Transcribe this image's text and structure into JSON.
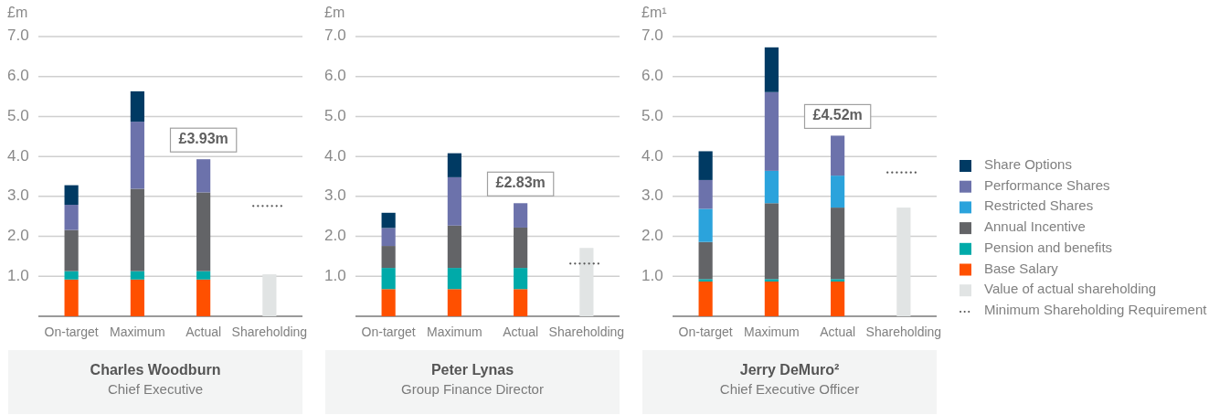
{
  "chart_data": [
    {
      "type": "bar",
      "stacked": true,
      "title": "Charles Woodburn",
      "subtitle": "Chief Executive",
      "ylabel": "£m",
      "categories": [
        "On-target",
        "Maximum",
        "Actual",
        "Shareholding"
      ],
      "ylim": [
        0,
        7
      ],
      "yticks": [
        {
          "value": 0,
          "label": null
        },
        {
          "value": 1,
          "label": "1.0"
        },
        {
          "value": 2,
          "label": "2.0"
        },
        {
          "value": 3,
          "label": "3.0"
        },
        {
          "value": 4,
          "label": "4.0"
        },
        {
          "value": 5,
          "label": "5.0"
        },
        {
          "value": 6,
          "label": "6.0"
        },
        {
          "value": 7,
          "label": "7.0"
        }
      ],
      "grid": "y",
      "totals": [
        null,
        null,
        "£3.93m",
        null
      ],
      "series": [
        {
          "color": "#e1e4e4",
          "values": [
            null,
            null,
            null,
            1.05
          ]
        },
        {
          "color": "#ff5000",
          "values": [
            0.92,
            0.92,
            0.92,
            null
          ]
        },
        {
          "color": "#00aaa9",
          "values": [
            0.21,
            0.21,
            0.21,
            null
          ]
        },
        {
          "color": "#636467",
          "values": [
            1.03,
            2.06,
            1.97,
            null
          ]
        },
        {
          "color": "#6c72ab",
          "values": [
            0.63,
            1.68,
            0.83,
            null
          ]
        },
        {
          "color": "#003a63",
          "values": [
            0.49,
            0.76,
            null,
            null
          ]
        }
      ],
      "ref_lines": [
        {
          "axis": "y",
          "value": 2.76,
          "color": "#555555",
          "line_style": "dotted"
        }
      ]
    },
    {
      "type": "bar",
      "stacked": true,
      "title": "Peter Lynas",
      "subtitle": "Group Finance Director",
      "ylabel": "£m",
      "categories": [
        "On-target",
        "Maximum",
        "Actual",
        "Shareholding"
      ],
      "ylim": [
        0,
        7
      ],
      "yticks": [
        {
          "value": 0,
          "label": null
        },
        {
          "value": 1,
          "label": "1.0"
        },
        {
          "value": 2,
          "label": "2.0"
        },
        {
          "value": 3,
          "label": "3.0"
        },
        {
          "value": 4,
          "label": "4.0"
        },
        {
          "value": 5,
          "label": "5.0"
        },
        {
          "value": 6,
          "label": "6.0"
        },
        {
          "value": 7,
          "label": "7.0"
        }
      ],
      "grid": "y",
      "totals": [
        null,
        null,
        "£2.83m",
        null
      ],
      "series": [
        {
          "color": "#e1e4e4",
          "values": [
            null,
            null,
            null,
            1.71
          ]
        },
        {
          "color": "#ff5000",
          "values": [
            0.68,
            0.68,
            0.68,
            null
          ]
        },
        {
          "color": "#00aaa9",
          "values": [
            0.53,
            0.53,
            0.53,
            null
          ]
        },
        {
          "color": "#636467",
          "values": [
            0.55,
            1.06,
            1.01,
            null
          ]
        },
        {
          "color": "#6c72ab",
          "values": [
            0.45,
            1.21,
            0.61,
            null
          ]
        },
        {
          "color": "#003a63",
          "values": [
            0.38,
            0.6,
            null,
            null
          ]
        }
      ],
      "ref_lines": [
        {
          "axis": "y",
          "value": 1.32,
          "color": "#555555",
          "line_style": "dotted"
        }
      ]
    },
    {
      "type": "bar",
      "stacked": true,
      "title": "Jerry DeMuro²",
      "subtitle": "Chief Executive Officer",
      "ylabel": "£m¹",
      "categories": [
        "On-target",
        "Maximum",
        "Actual",
        "Shareholding"
      ],
      "ylim": [
        0,
        7
      ],
      "yticks": [
        {
          "value": 0,
          "label": null
        },
        {
          "value": 1,
          "label": "1.0"
        },
        {
          "value": 2,
          "label": "2.0"
        },
        {
          "value": 3,
          "label": "3.0"
        },
        {
          "value": 4,
          "label": "4.0"
        },
        {
          "value": 5,
          "label": "5.0"
        },
        {
          "value": 6,
          "label": "6.0"
        },
        {
          "value": 7,
          "label": "7.0"
        }
      ],
      "grid": "y",
      "totals": [
        null,
        null,
        "£4.52m",
        null
      ],
      "legend": "right",
      "series": [
        {
          "name": "Value of actual shareholding",
          "color": "#e1e4e4",
          "values": [
            null,
            null,
            null,
            2.72
          ]
        },
        {
          "name": "Base Salary",
          "color": "#ff5000",
          "values": [
            0.87,
            0.87,
            0.87,
            null
          ]
        },
        {
          "name": "Pension and benefits",
          "color": "#00aaa9",
          "values": [
            0.06,
            0.06,
            0.06,
            null
          ]
        },
        {
          "name": "Annual Incentive",
          "color": "#636467",
          "values": [
            0.93,
            1.9,
            1.79,
            null
          ]
        },
        {
          "name": "Restricted Shares",
          "color": "#2ba3dc",
          "values": [
            0.83,
            0.81,
            0.8,
            null
          ]
        },
        {
          "name": "Performance Shares",
          "color": "#6c72ab",
          "values": [
            0.72,
            1.97,
            1.0,
            null
          ]
        },
        {
          "name": "Share Options",
          "color": "#003a63",
          "values": [
            0.72,
            1.12,
            null,
            null
          ]
        }
      ],
      "ref_lines": [
        {
          "axis": "y",
          "value": 3.6,
          "label": "Minimum Shareholding Requirement",
          "color": "#555555",
          "line_style": "dotted"
        }
      ]
    }
  ]
}
